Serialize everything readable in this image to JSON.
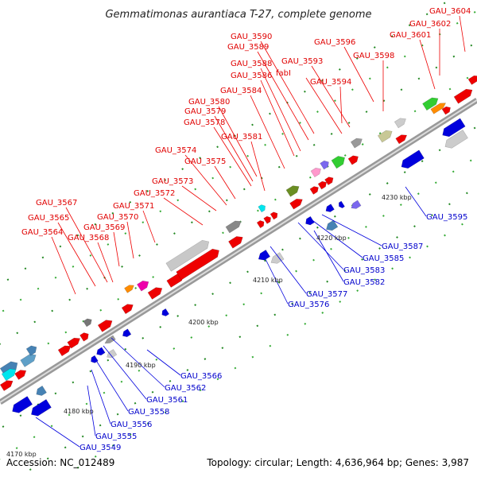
{
  "title": "Gemmatimonas aurantiaca T-27, complete genome",
  "footer": {
    "accession": "Accession: NC_012489",
    "topology": "Topology: circular; Length: 4,636,964 bp; Genes: 3,987"
  },
  "ticks": [
    "4170 kbp",
    "4180 kbp",
    "4190 kbp",
    "4200 kbp",
    "4210 kbp",
    "4220 kbp",
    "4230 kbp"
  ],
  "top_labels": [
    "GAU_3604",
    "GAU_3602",
    "GAU_3601",
    "GAU_3596",
    "GAU_3598",
    "GAU_3590",
    "GAU_3589",
    "GAU_3593",
    "fabI",
    "GAU_3588",
    "GAU_3586",
    "GAU_3594",
    "GAU_3584",
    "GAU_3580",
    "GAU_3579",
    "GAU_3578",
    "GAU_3581",
    "GAU_3574",
    "GAU_3575",
    "GAU_3573",
    "GAU_3572",
    "GAU_3571",
    "GAU_3567",
    "GAU_3570",
    "GAU_3565",
    "GAU_3569",
    "GAU_3564",
    "GAU_3568"
  ],
  "bottom_labels": [
    "GAU_3595",
    "GAU_3587",
    "GAU_3585",
    "GAU_3583",
    "GAU_3582",
    "GAU_3577",
    "GAU_3576",
    "GAU_3566",
    "GAU_3562",
    "GAU_3561",
    "GAU_3558",
    "GAU_3556",
    "GAU_3555",
    "GAU_3549"
  ],
  "colors": {
    "forward": "#ee0000",
    "reverse": "#0000dd",
    "backbone": "#999999"
  }
}
